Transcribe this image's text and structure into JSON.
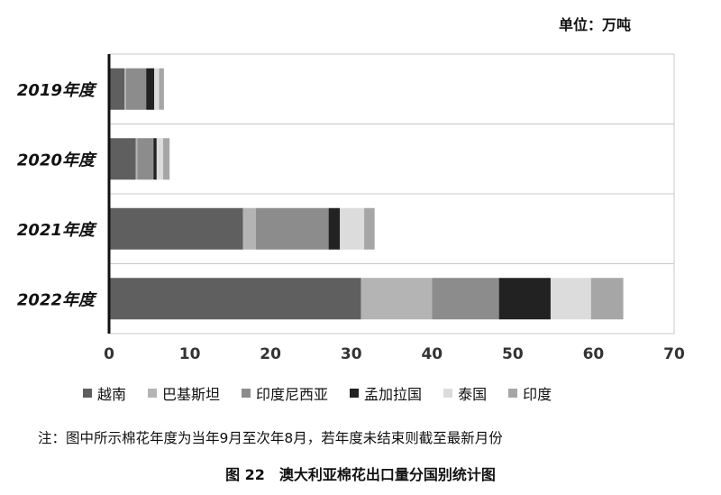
{
  "unit_label": "单位：万吨",
  "note": "注：图中所示棉花年度为当年9月至次年8月，若年度未结束则截至最新月份",
  "caption": "图 22　澳大利亚棉花出口量分国别统计图",
  "chart_data": {
    "type": "bar",
    "orientation": "horizontal",
    "stacked": true,
    "categories": [
      "2019年度",
      "2020年度",
      "2021年度",
      "2022年度"
    ],
    "series": [
      {
        "name": "越南",
        "color": "#5f5f5f",
        "values": [
          1.9,
          3.3,
          16.6,
          31.2
        ]
      },
      {
        "name": "巴基斯坦",
        "color": "#b4b4b4",
        "values": [
          0.2,
          0.2,
          1.6,
          8.8
        ]
      },
      {
        "name": "印度尼西亚",
        "color": "#8c8c8c",
        "values": [
          2.5,
          2.0,
          9.0,
          8.3
        ]
      },
      {
        "name": "孟加拉国",
        "color": "#222222",
        "values": [
          1.0,
          0.4,
          1.4,
          6.4
        ]
      },
      {
        "name": "泰国",
        "color": "#dcdcdc",
        "values": [
          0.6,
          0.8,
          3.0,
          5.0
        ]
      },
      {
        "name": "印度",
        "color": "#a6a6a6",
        "values": [
          0.6,
          0.8,
          1.3,
          4.0
        ]
      }
    ],
    "xlim": [
      0,
      70
    ],
    "xticks": [
      0,
      10,
      20,
      30,
      40,
      50,
      60,
      70
    ],
    "grid": true,
    "legend_position": "bottom"
  }
}
